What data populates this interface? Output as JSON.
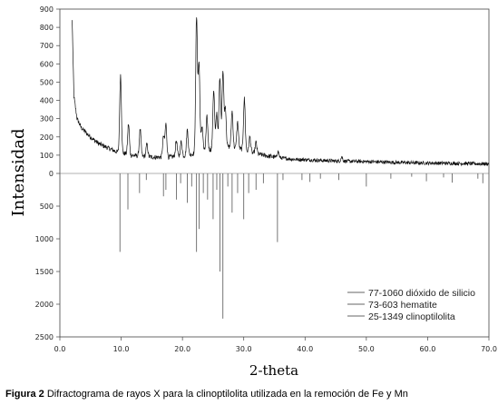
{
  "chart_data": {
    "type": "line",
    "title": "",
    "xlabel": "2-theta",
    "ylabel": "Intensidad",
    "xlim": [
      0,
      70
    ],
    "ylim": [
      -2500,
      900
    ],
    "x_ticks": [
      {
        "value": 0,
        "label": "0.0"
      },
      {
        "value": 10,
        "label": "10.0"
      },
      {
        "value": 20,
        "label": "20.0"
      },
      {
        "value": 30,
        "label": "30.0"
      },
      {
        "value": 40,
        "label": "40.0"
      },
      {
        "value": 50,
        "label": "50.0"
      },
      {
        "value": 60,
        "label": "60.0"
      },
      {
        "value": 70,
        "label": "70.0"
      }
    ],
    "y_ticks": [
      {
        "value": 900,
        "label": "900"
      },
      {
        "value": 800,
        "label": "800"
      },
      {
        "value": 700,
        "label": "700"
      },
      {
        "value": 600,
        "label": "600"
      },
      {
        "value": 500,
        "label": "500"
      },
      {
        "value": 400,
        "label": "400"
      },
      {
        "value": 300,
        "label": "300"
      },
      {
        "value": 200,
        "label": "200"
      },
      {
        "value": 100,
        "label": "100"
      },
      {
        "value": 0,
        "label": "0"
      },
      {
        "value": -500,
        "label": "500"
      },
      {
        "value": -1000,
        "label": "1000"
      },
      {
        "value": -1500,
        "label": "1500"
      },
      {
        "value": -2000,
        "label": "2000"
      },
      {
        "value": -2500,
        "label": "2500"
      }
    ],
    "grid": false,
    "legend_position": "bottom-right",
    "legend": [
      "77-1060 dióxido de silicio",
      "73-603 hematite",
      "25-1349 clinoptilolita"
    ],
    "pattern": {
      "background": [
        [
          2.0,
          840
        ],
        [
          2.3,
          420
        ],
        [
          2.8,
          300
        ],
        [
          3.5,
          250
        ],
        [
          4.5,
          215
        ],
        [
          5.5,
          185
        ],
        [
          6.5,
          160
        ],
        [
          7.5,
          145
        ],
        [
          8.5,
          130
        ],
        [
          9.3,
          118
        ],
        [
          10.5,
          110
        ],
        [
          11.5,
          100
        ],
        [
          13,
          95
        ],
        [
          15,
          90
        ],
        [
          17,
          88
        ],
        [
          19,
          92
        ],
        [
          21,
          100
        ],
        [
          22,
          110
        ],
        [
          24,
          125
        ],
        [
          25.5,
          140
        ],
        [
          27,
          150
        ],
        [
          28.5,
          140
        ],
        [
          30,
          130
        ],
        [
          31,
          115
        ],
        [
          32.5,
          105
        ],
        [
          34,
          95
        ],
        [
          36,
          85
        ],
        [
          38,
          78
        ],
        [
          40,
          75
        ],
        [
          45,
          68
        ],
        [
          50,
          65
        ],
        [
          55,
          60
        ],
        [
          60,
          57
        ],
        [
          65,
          55
        ],
        [
          70,
          52
        ]
      ],
      "peaks": [
        {
          "x": 9.9,
          "y": 540
        },
        {
          "x": 11.2,
          "y": 270
        },
        {
          "x": 13.1,
          "y": 240
        },
        {
          "x": 14.2,
          "y": 160
        },
        {
          "x": 16.9,
          "y": 200
        },
        {
          "x": 17.3,
          "y": 270
        },
        {
          "x": 19.0,
          "y": 180
        },
        {
          "x": 19.8,
          "y": 175
        },
        {
          "x": 20.8,
          "y": 240
        },
        {
          "x": 22.3,
          "y": 850
        },
        {
          "x": 22.7,
          "y": 600
        },
        {
          "x": 23.2,
          "y": 260
        },
        {
          "x": 24.0,
          "y": 310
        },
        {
          "x": 25.1,
          "y": 460
        },
        {
          "x": 25.6,
          "y": 330
        },
        {
          "x": 26.1,
          "y": 520
        },
        {
          "x": 26.6,
          "y": 560
        },
        {
          "x": 27.0,
          "y": 360
        },
        {
          "x": 28.1,
          "y": 340
        },
        {
          "x": 29.0,
          "y": 280
        },
        {
          "x": 30.1,
          "y": 410
        },
        {
          "x": 31.0,
          "y": 200
        },
        {
          "x": 32.0,
          "y": 170
        },
        {
          "x": 35.6,
          "y": 120
        },
        {
          "x": 46.0,
          "y": 90
        }
      ]
    },
    "references": [
      {
        "x": 9.8,
        "y": -1200
      },
      {
        "x": 11.1,
        "y": -550
      },
      {
        "x": 13.0,
        "y": -300
      },
      {
        "x": 14.1,
        "y": -100
      },
      {
        "x": 16.9,
        "y": -350
      },
      {
        "x": 17.3,
        "y": -250
      },
      {
        "x": 19.0,
        "y": -400
      },
      {
        "x": 19.7,
        "y": -150
      },
      {
        "x": 20.8,
        "y": -450
      },
      {
        "x": 21.5,
        "y": -200
      },
      {
        "x": 22.3,
        "y": -1200
      },
      {
        "x": 22.7,
        "y": -850
      },
      {
        "x": 23.4,
        "y": -300
      },
      {
        "x": 24.1,
        "y": -400
      },
      {
        "x": 25.0,
        "y": -700
      },
      {
        "x": 25.6,
        "y": -250
      },
      {
        "x": 26.1,
        "y": -1500
      },
      {
        "x": 26.6,
        "y": -2220
      },
      {
        "x": 27.4,
        "y": -200
      },
      {
        "x": 28.1,
        "y": -600
      },
      {
        "x": 29.0,
        "y": -300
      },
      {
        "x": 30.0,
        "y": -700
      },
      {
        "x": 30.8,
        "y": -300
      },
      {
        "x": 32.0,
        "y": -250
      },
      {
        "x": 33.2,
        "y": -150
      },
      {
        "x": 35.5,
        "y": -1050
      },
      {
        "x": 36.4,
        "y": -100
      },
      {
        "x": 39.5,
        "y": -100
      },
      {
        "x": 40.8,
        "y": -130
      },
      {
        "x": 42.5,
        "y": -80
      },
      {
        "x": 45.5,
        "y": -100
      },
      {
        "x": 50.0,
        "y": -200
      },
      {
        "x": 54.0,
        "y": -80
      },
      {
        "x": 57.4,
        "y": -50
      },
      {
        "x": 59.8,
        "y": -120
      },
      {
        "x": 62.6,
        "y": -60
      },
      {
        "x": 64.0,
        "y": -140
      },
      {
        "x": 68.2,
        "y": -80
      },
      {
        "x": 69.0,
        "y": -150
      }
    ]
  },
  "caption": {
    "label": "Figura 2",
    "text": " Difractograma de rayos X para la clinoptilolita utilizada en la remoción de Fe y Mn"
  }
}
